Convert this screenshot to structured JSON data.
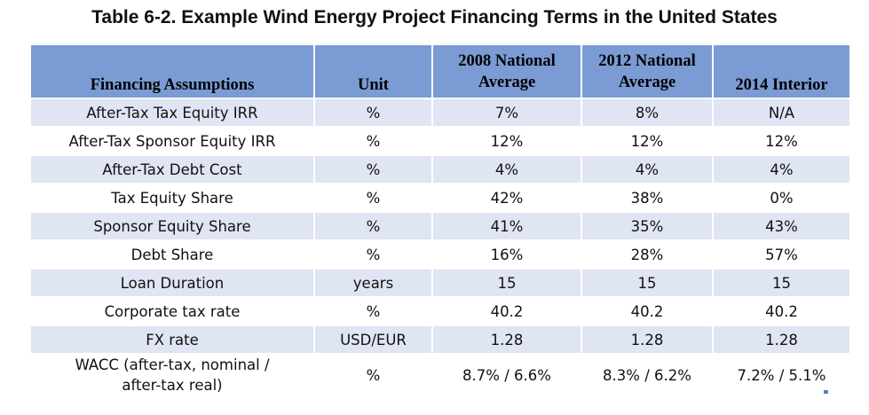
{
  "title": "Table 6-2. Example Wind Energy Project Financing Terms in the United States",
  "columns": {
    "assumption": "Financing Assumptions",
    "unit": "Unit",
    "col2008_l1": "2008 National",
    "col2008_l2": "Average",
    "col2012_l1": "2012 National",
    "col2012_l2": "Average",
    "col2014": "2014 Interior"
  },
  "rows": [
    {
      "label": "After-Tax Tax Equity IRR",
      "unit": "%",
      "v2008": "7%",
      "v2012": "8%",
      "v2014": "N/A"
    },
    {
      "label": "After-Tax Sponsor Equity IRR",
      "unit": "%",
      "v2008": "12%",
      "v2012": "12%",
      "v2014": "12%"
    },
    {
      "label": "After-Tax Debt Cost",
      "unit": "%",
      "v2008": "4%",
      "v2012": "4%",
      "v2014": "4%"
    },
    {
      "label": "Tax Equity Share",
      "unit": "%",
      "v2008": "42%",
      "v2012": "38%",
      "v2014": "0%"
    },
    {
      "label": "Sponsor Equity Share",
      "unit": "%",
      "v2008": "41%",
      "v2012": "35%",
      "v2014": "43%"
    },
    {
      "label": "Debt Share",
      "unit": "%",
      "v2008": "16%",
      "v2012": "28%",
      "v2014": "57%"
    },
    {
      "label": "Loan Duration",
      "unit": "years",
      "v2008": "15",
      "v2012": "15",
      "v2014": "15"
    },
    {
      "label": "Corporate tax rate",
      "unit": "%",
      "v2008": "40.2",
      "v2012": "40.2",
      "v2014": "40.2"
    },
    {
      "label": "FX rate",
      "unit": "USD/EUR",
      "v2008": "1.28",
      "v2012": "1.28",
      "v2014": "1.28"
    },
    {
      "label_l1": "WACC (after-tax, nominal /",
      "label_l2": "after-tax real)",
      "unit": "%",
      "v2008": "8.7% / 6.6%",
      "v2012": "8.3% / 6.2%",
      "v2014": "7.2% / 5.1%"
    }
  ]
}
